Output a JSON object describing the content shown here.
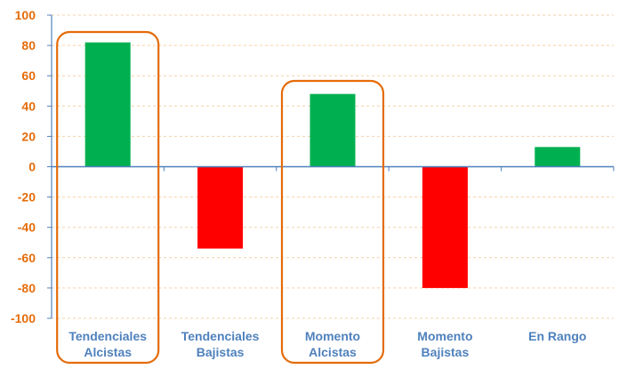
{
  "chart_data": {
    "type": "bar",
    "categories": [
      [
        "Tendenciales",
        "Alcistas"
      ],
      [
        "Tendenciales",
        "Bajistas"
      ],
      [
        "Momento",
        "Alcistas"
      ],
      [
        "Momento",
        "Bajistas"
      ],
      [
        "En Rango"
      ]
    ],
    "values": [
      82,
      -54,
      48,
      -80,
      13
    ],
    "highlighted": [
      true,
      false,
      true,
      false,
      false
    ],
    "ylim": [
      -100,
      100
    ],
    "yticks": [
      "100",
      "80",
      "60",
      "40",
      "20",
      "0",
      "-20",
      "-40",
      "-60",
      "-80",
      "-100"
    ],
    "grid": true,
    "colors": {
      "positive": "#00B050",
      "negative": "#FF0000",
      "axis": "#4F81BD",
      "gridline": "#F6CFA8",
      "ytick_text": "#E46C0A",
      "xtick_text": "#4F81BD",
      "highlight_box": "#E46C0A"
    }
  }
}
